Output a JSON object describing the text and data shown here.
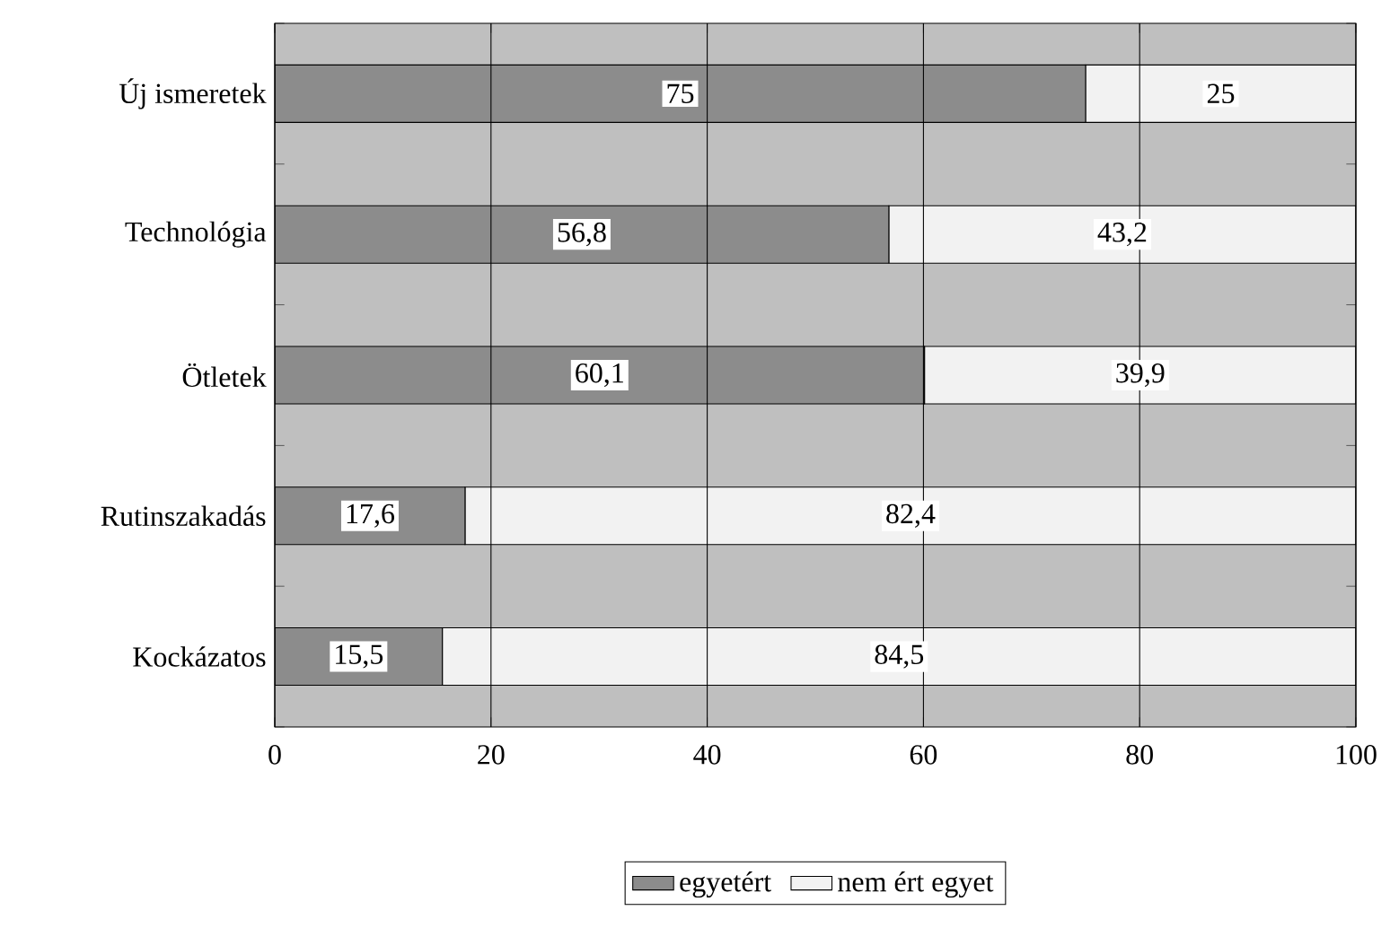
{
  "chart_data": {
    "type": "bar",
    "orientation": "horizontal",
    "stacked": true,
    "categories": [
      "Új ismeretek",
      "Technológia",
      "Ötletek",
      "Rutinszakadás",
      "Kockázatos"
    ],
    "series": [
      {
        "name": "egyetért",
        "color": "#8c8c8c",
        "values": [
          75,
          56.8,
          60.1,
          17.6,
          15.5
        ],
        "value_labels": [
          "75",
          "56,8",
          "60,1",
          "17,6",
          "15,5"
        ]
      },
      {
        "name": "nem ért egyet",
        "color": "#f2f2f2",
        "values": [
          25,
          43.2,
          39.9,
          82.4,
          84.5
        ],
        "value_labels": [
          "25",
          "43,2",
          "39,9",
          "82,4",
          "84,5"
        ]
      }
    ],
    "xlim": [
      0,
      100
    ],
    "xticks": [
      0,
      20,
      40,
      60,
      80,
      100
    ],
    "grid": "x",
    "legend": "bottom"
  }
}
